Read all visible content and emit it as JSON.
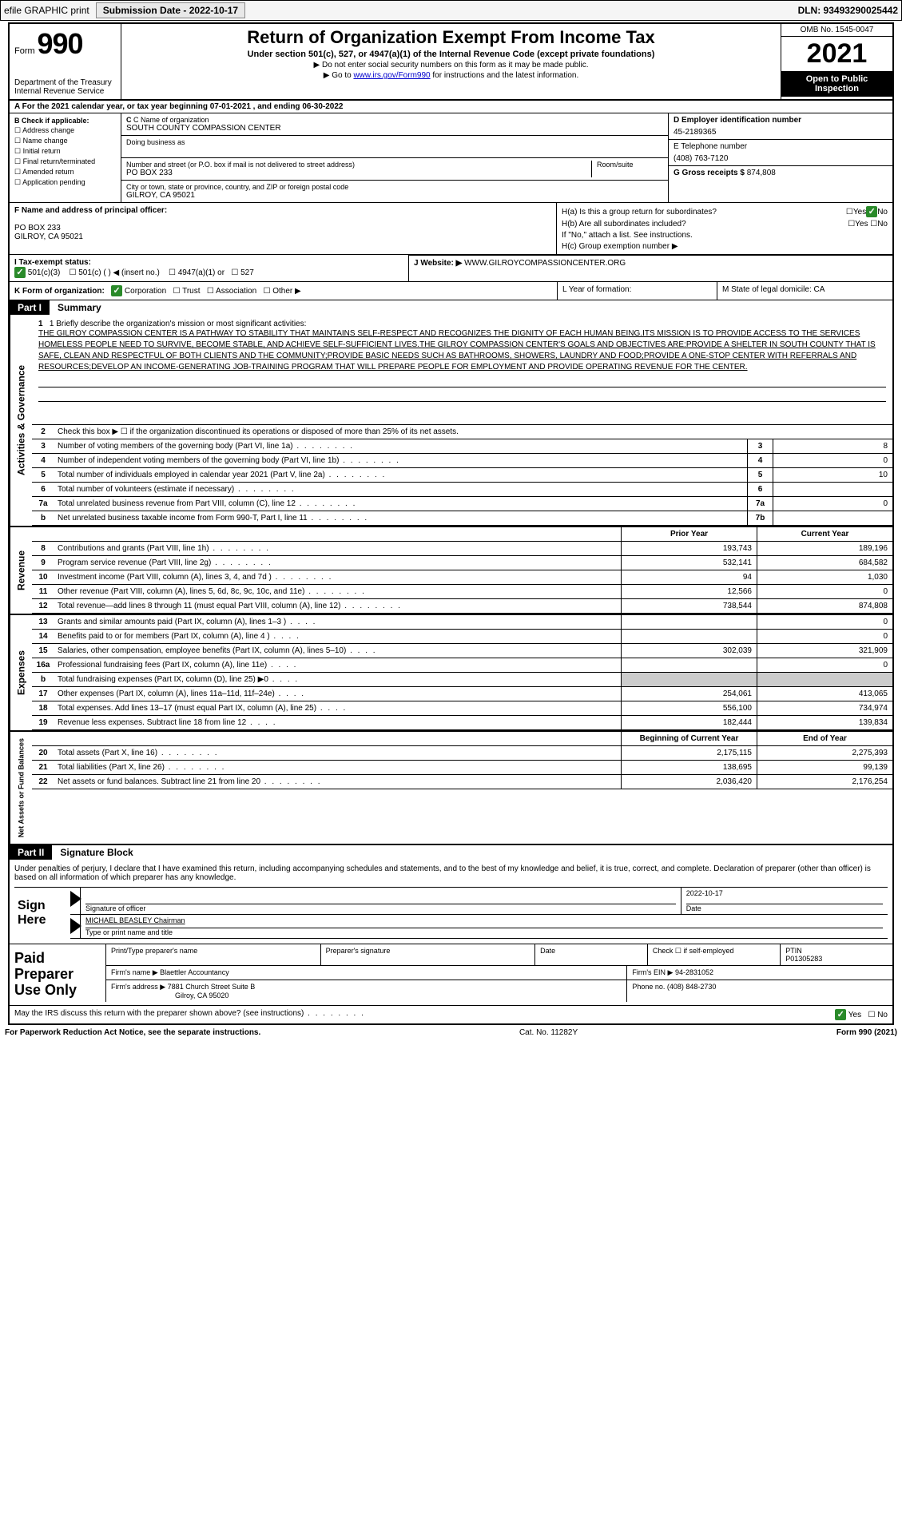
{
  "topbar": {
    "efile": "efile GRAPHIC print",
    "submission_label": "Submission Date - 2022-10-17",
    "dln": "DLN: 93493290025442"
  },
  "header": {
    "form_word": "Form",
    "form_num": "990",
    "dept": "Department of the Treasury",
    "irs": "Internal Revenue Service",
    "title": "Return of Organization Exempt From Income Tax",
    "sub1": "Under section 501(c), 527, or 4947(a)(1) of the Internal Revenue Code (except private foundations)",
    "sub2": "▶ Do not enter social security numbers on this form as it may be made public.",
    "sub3_pre": "▶ Go to ",
    "sub3_link": "www.irs.gov/Form990",
    "sub3_post": " for instructions and the latest information.",
    "omb": "OMB No. 1545-0047",
    "year": "2021",
    "inspection": "Open to Public Inspection"
  },
  "row_a": "A For the 2021 calendar year, or tax year beginning 07-01-2021  , and ending 06-30-2022",
  "col_b": {
    "title": "B Check if applicable:",
    "items": [
      "Address change",
      "Name change",
      "Initial return",
      "Final return/terminated",
      "Amended return",
      "Application pending"
    ]
  },
  "col_c": {
    "c_label": "C Name of organization",
    "c_val": "SOUTH COUNTY COMPASSION CENTER",
    "dba_label": "Doing business as",
    "dba_val": "",
    "addr_label": "Number and street (or P.O. box if mail is not delivered to street address)",
    "addr_val": "PO BOX 233",
    "room_label": "Room/suite",
    "city_label": "City or town, state or province, country, and ZIP or foreign postal code",
    "city_val": "GILROY, CA  95021"
  },
  "col_d": {
    "d_label": "D Employer identification number",
    "d_val": "45-2189365",
    "e_label": "E Telephone number",
    "e_val": "(408) 763-7120",
    "g_label": "G Gross receipts $",
    "g_val": "874,808"
  },
  "row_f": {
    "label": "F  Name and address of principal officer:",
    "line1": "PO BOX 233",
    "line2": "GILROY, CA  95021"
  },
  "row_h": {
    "ha": "H(a)  Is this a group return for subordinates?",
    "hb": "H(b)  Are all subordinates included?",
    "hb_note": "If \"No,\" attach a list. See instructions.",
    "hc": "H(c)  Group exemption number ▶"
  },
  "row_i": {
    "label": "I  Tax-exempt status:",
    "opt1": "501(c)(3)",
    "opt2": "501(c) (   ) ◀ (insert no.)",
    "opt3": "4947(a)(1) or",
    "opt4": "527"
  },
  "row_j": {
    "label": "J Website: ▶",
    "val": " WWW.GILROYCOMPASSIONCENTER.ORG"
  },
  "row_k": {
    "label": "K Form of organization:",
    "opts": [
      "Corporation",
      "Trust",
      "Association",
      "Other ▶"
    ]
  },
  "row_l": "L Year of formation:",
  "row_m": "M State of legal domicile: CA",
  "part1": {
    "num": "Part I",
    "title": "Summary"
  },
  "mission": {
    "label": "1   Briefly describe the organization's mission or most significant activities:",
    "text": "THE GILROY COMPASSION CENTER IS A PATHWAY TO STABILITY THAT MAINTAINS SELF-RESPECT AND RECOGNIZES THE DIGNITY OF EACH HUMAN BEING.ITS MISSION IS TO PROVIDE ACCESS TO THE SERVICES HOMELESS PEOPLE NEED TO SURVIVE, BECOME STABLE, AND ACHIEVE SELF-SUFFICIENT LIVES.THE GILROY COMPASSION CENTER'S GOALS AND OBJECTIVES ARE:PROVIDE A SHELTER IN SOUTH COUNTY THAT IS SAFE, CLEAN AND RESPECTFUL OF BOTH CLIENTS AND THE COMMUNITY;PROVIDE BASIC NEEDS SUCH AS BATHROOMS, SHOWERS, LAUNDRY AND FOOD;PROVIDE A ONE-STOP CENTER WITH REFERRALS AND RESOURCES;DEVELOP AN INCOME-GENERATING JOB-TRAINING PROGRAM THAT WILL PREPARE PEOPLE FOR EMPLOYMENT AND PROVIDE OPERATING REVENUE FOR THE CENTER."
  },
  "gov_rows": {
    "r2": "Check this box ▶ ☐ if the organization discontinued its operations or disposed of more than 25% of its net assets.",
    "r3": {
      "d": "Number of voting members of the governing body (Part VI, line 1a)",
      "bn": "3",
      "bv": "8"
    },
    "r4": {
      "d": "Number of independent voting members of the governing body (Part VI, line 1b)",
      "bn": "4",
      "bv": "0"
    },
    "r5": {
      "d": "Total number of individuals employed in calendar year 2021 (Part V, line 2a)",
      "bn": "5",
      "bv": "10"
    },
    "r6": {
      "d": "Total number of volunteers (estimate if necessary)",
      "bn": "6",
      "bv": ""
    },
    "r7a": {
      "d": "Total unrelated business revenue from Part VIII, column (C), line 12",
      "bn": "7a",
      "bv": "0"
    },
    "r7b": {
      "d": "Net unrelated business taxable income from Form 990-T, Part I, line 11",
      "bn": "7b",
      "bv": ""
    }
  },
  "rev_hdr": {
    "py": "Prior Year",
    "cy": "Current Year"
  },
  "rev_rows": [
    {
      "n": "8",
      "d": "Contributions and grants (Part VIII, line 1h)",
      "py": "193,743",
      "cy": "189,196"
    },
    {
      "n": "9",
      "d": "Program service revenue (Part VIII, line 2g)",
      "py": "532,141",
      "cy": "684,582"
    },
    {
      "n": "10",
      "d": "Investment income (Part VIII, column (A), lines 3, 4, and 7d )",
      "py": "94",
      "cy": "1,030"
    },
    {
      "n": "11",
      "d": "Other revenue (Part VIII, column (A), lines 5, 6d, 8c, 9c, 10c, and 11e)",
      "py": "12,566",
      "cy": "0"
    },
    {
      "n": "12",
      "d": "Total revenue—add lines 8 through 11 (must equal Part VIII, column (A), line 12)",
      "py": "738,544",
      "cy": "874,808"
    }
  ],
  "exp_rows": [
    {
      "n": "13",
      "d": "Grants and similar amounts paid (Part IX, column (A), lines 1–3 )",
      "py": "",
      "cy": "0"
    },
    {
      "n": "14",
      "d": "Benefits paid to or for members (Part IX, column (A), line 4 )",
      "py": "",
      "cy": "0"
    },
    {
      "n": "15",
      "d": "Salaries, other compensation, employee benefits (Part IX, column (A), lines 5–10)",
      "py": "302,039",
      "cy": "321,909"
    },
    {
      "n": "16a",
      "d": "Professional fundraising fees (Part IX, column (A), line 11e)",
      "py": "",
      "cy": "0"
    },
    {
      "n": "b",
      "d": "Total fundraising expenses (Part IX, column (D), line 25) ▶0",
      "py": "GREY",
      "cy": "GREY"
    },
    {
      "n": "17",
      "d": "Other expenses (Part IX, column (A), lines 11a–11d, 11f–24e)",
      "py": "254,061",
      "cy": "413,065"
    },
    {
      "n": "18",
      "d": "Total expenses. Add lines 13–17 (must equal Part IX, column (A), line 25)",
      "py": "556,100",
      "cy": "734,974"
    },
    {
      "n": "19",
      "d": "Revenue less expenses. Subtract line 18 from line 12",
      "py": "182,444",
      "cy": "139,834"
    }
  ],
  "na_hdr": {
    "py": "Beginning of Current Year",
    "cy": "End of Year"
  },
  "na_rows": [
    {
      "n": "20",
      "d": "Total assets (Part X, line 16)",
      "py": "2,175,115",
      "cy": "2,275,393"
    },
    {
      "n": "21",
      "d": "Total liabilities (Part X, line 26)",
      "py": "138,695",
      "cy": "99,139"
    },
    {
      "n": "22",
      "d": "Net assets or fund balances. Subtract line 21 from line 20",
      "py": "2,036,420",
      "cy": "2,176,254"
    }
  ],
  "side_labels": {
    "gov": "Activities & Governance",
    "rev": "Revenue",
    "exp": "Expenses",
    "na": "Net Assets or Fund Balances"
  },
  "part2": {
    "num": "Part II",
    "title": "Signature Block"
  },
  "sig": {
    "penalty": "Under penalties of perjury, I declare that I have examined this return, including accompanying schedules and statements, and to the best of my knowledge and belief, it is true, correct, and complete. Declaration of preparer (other than officer) is based on all information of which preparer has any knowledge.",
    "sign_here": "Sign Here",
    "sig_officer": "Signature of officer",
    "date": "Date",
    "date_val": "2022-10-17",
    "name_title": "MICHAEL BEASLEY Chairman",
    "type_name": "Type or print name and title"
  },
  "prep": {
    "title": "Paid Preparer Use Only",
    "h1": "Print/Type preparer's name",
    "h2": "Preparer's signature",
    "h3": "Date",
    "h4": "Check ☐ if self-employed",
    "h5_label": "PTIN",
    "h5": "P01305283",
    "firm_name_label": "Firm's name      ▶",
    "firm_name": "Blaettler Accountancy",
    "firm_ein_label": "Firm's EIN ▶",
    "firm_ein": "94-2831052",
    "firm_addr_label": "Firm's address ▶",
    "firm_addr1": "7881 Church Street Suite B",
    "firm_addr2": "Gilroy, CA  95020",
    "phone_label": "Phone no.",
    "phone": "(408) 848-2730"
  },
  "footer": {
    "discuss": "May the IRS discuss this return with the preparer shown above? (see instructions)",
    "yes": "Yes",
    "no": "No",
    "paperwork": "For Paperwork Reduction Act Notice, see the separate instructions.",
    "cat": "Cat. No. 11282Y",
    "form": "Form 990 (2021)"
  },
  "colors": {
    "link": "#0000cc",
    "check": "#2a8a2a"
  }
}
